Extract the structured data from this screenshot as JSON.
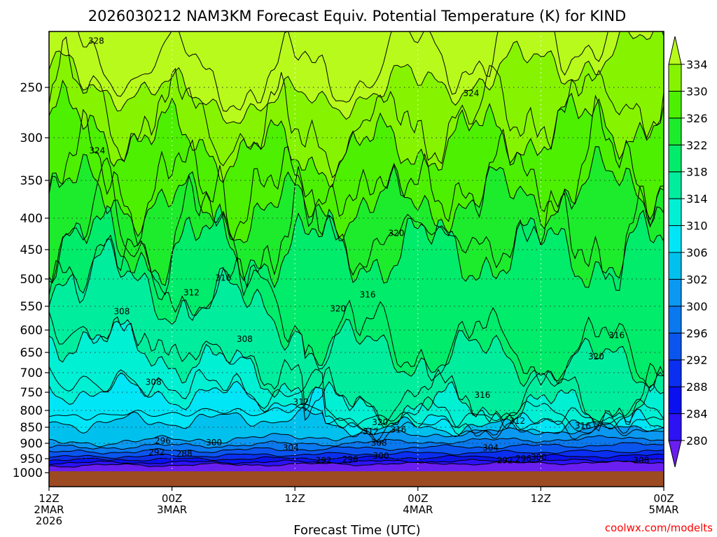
{
  "chart_data": {
    "type": "contour",
    "title": "2026030212 NAM3KM Forecast Equiv. Potential Temperature (K) for KIND",
    "xlabel": "Forecast Time (UTC)",
    "ylabel": "",
    "credit": "coolwx.com/modelts",
    "y_axis": {
      "ticks": [
        250,
        300,
        350,
        400,
        450,
        500,
        550,
        600,
        650,
        700,
        750,
        800,
        850,
        900,
        950,
        1000
      ],
      "range": [
        200,
        1040
      ],
      "direction": "pressure-down"
    },
    "x_axis": {
      "ticks": [
        {
          "hour": 0,
          "l1": "12Z",
          "l2": "2MAR",
          "l3": "2026"
        },
        {
          "hour": 12,
          "l1": "00Z",
          "l2": "3MAR",
          "l3": ""
        },
        {
          "hour": 24,
          "l1": "12Z",
          "l2": "",
          "l3": ""
        },
        {
          "hour": 36,
          "l1": "00Z",
          "l2": "4MAR",
          "l3": ""
        },
        {
          "hour": 48,
          "l1": "12Z",
          "l2": "",
          "l3": ""
        },
        {
          "hour": 60,
          "l1": "00Z",
          "l2": "5MAR",
          "l3": ""
        }
      ],
      "range": [
        0,
        60
      ]
    },
    "colorbar": {
      "labels": [
        280,
        284,
        288,
        292,
        296,
        300,
        302,
        306,
        310,
        314,
        318,
        322,
        326,
        330,
        334
      ],
      "colors": [
        "#6a1ef0",
        "#2d12f4",
        "#0a10f0",
        "#0a2ff0",
        "#0a55ee",
        "#0a78ee",
        "#0a98f0",
        "#00c0ee",
        "#00e6f6",
        "#00f0d4",
        "#00ed9e",
        "#00ec6a",
        "#1cec2c",
        "#4cf000",
        "#86f400",
        "#b8fa1c"
      ]
    },
    "contour_labels": [
      {
        "text": "328",
        "t": 4.6,
        "p": 215
      },
      {
        "text": "324",
        "t": 41.2,
        "p": 256
      },
      {
        "text": "324",
        "t": 4.7,
        "p": 315
      },
      {
        "text": "320",
        "t": 33.9,
        "p": 424
      },
      {
        "text": "316",
        "t": 17.0,
        "p": 498
      },
      {
        "text": "312",
        "t": 13.9,
        "p": 525
      },
      {
        "text": "316",
        "t": 31.1,
        "p": 529
      },
      {
        "text": "320",
        "t": 28.2,
        "p": 555
      },
      {
        "text": "308",
        "t": 7.1,
        "p": 561
      },
      {
        "text": "308",
        "t": 19.1,
        "p": 620
      },
      {
        "text": "316",
        "t": 55.4,
        "p": 612
      },
      {
        "text": "320",
        "t": 53.4,
        "p": 660
      },
      {
        "text": "308",
        "t": 10.2,
        "p": 724
      },
      {
        "text": "316",
        "t": 42.3,
        "p": 758
      },
      {
        "text": "312",
        "t": 24.6,
        "p": 777
      },
      {
        "text": "312",
        "t": 45.7,
        "p": 831
      },
      {
        "text": "320",
        "t": 32.3,
        "p": 835
      },
      {
        "text": "316",
        "t": 52.1,
        "p": 846
      },
      {
        "text": "316",
        "t": 34.1,
        "p": 858
      },
      {
        "text": "312",
        "t": 31.4,
        "p": 863
      },
      {
        "text": "296",
        "t": 11.1,
        "p": 892
      },
      {
        "text": "300",
        "t": 16.1,
        "p": 898
      },
      {
        "text": "308",
        "t": 32.2,
        "p": 899
      },
      {
        "text": "304",
        "t": 23.6,
        "p": 915
      },
      {
        "text": "304",
        "t": 43.1,
        "p": 915
      },
      {
        "text": "292",
        "t": 10.5,
        "p": 929
      },
      {
        "text": "288",
        "t": 13.2,
        "p": 934
      },
      {
        "text": "300",
        "t": 32.4,
        "p": 941
      },
      {
        "text": "300",
        "t": 47.8,
        "p": 945
      },
      {
        "text": "296",
        "t": 29.4,
        "p": 953
      },
      {
        "text": "292",
        "t": 26.8,
        "p": 956
      },
      {
        "text": "296",
        "t": 46.3,
        "p": 950
      },
      {
        "text": "292",
        "t": 44.5,
        "p": 956
      },
      {
        "text": "308",
        "t": 57.8,
        "p": 956
      }
    ],
    "regions": [
      {
        "label": 280,
        "t": 3.3,
        "p": 960
      },
      {
        "label": 292,
        "t": 24.0,
        "p": 950
      },
      {
        "label": 300,
        "t": 40.0,
        "p": 935
      },
      {
        "label": 304,
        "t": 20.0,
        "p": 900
      },
      {
        "label": 308,
        "t": 8.0,
        "p": 850
      },
      {
        "label": 312,
        "t": 4.0,
        "p": 800
      },
      {
        "label": 308,
        "t": 8.0,
        "p": 620
      },
      {
        "label": 312,
        "t": 20.0,
        "p": 690
      },
      {
        "label": 316,
        "t": 27.0,
        "p": 720
      },
      {
        "label": 320,
        "t": 32.0,
        "p": 620
      },
      {
        "label": 316,
        "t": 45.0,
        "p": 700
      },
      {
        "label": 320,
        "t": 50.0,
        "p": 600
      },
      {
        "label": 320,
        "t": 30.0,
        "p": 450
      },
      {
        "label": 322,
        "t": 45.0,
        "p": 380
      },
      {
        "label": 324,
        "t": 30.0,
        "p": 320
      },
      {
        "label": 326,
        "t": 10.0,
        "p": 280
      },
      {
        "label": 328,
        "t": 50.0,
        "p": 260
      },
      {
        "label": 330,
        "t": 12.0,
        "p": 220
      }
    ]
  }
}
